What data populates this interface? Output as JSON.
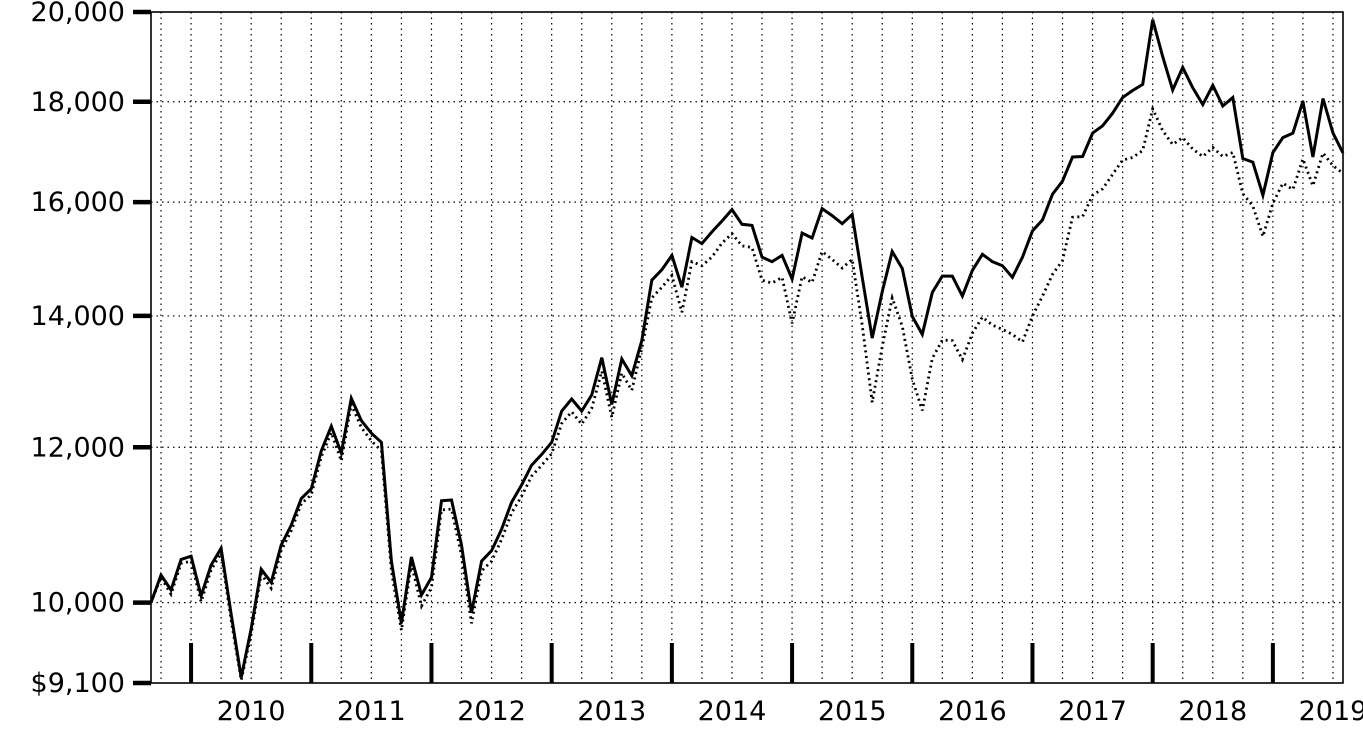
{
  "chart_data": {
    "type": "line",
    "title": "",
    "description": "Growth of investment, log-scaled line chart, solid and dotted black series",
    "background_color": "#ffffff",
    "line_color": "#000000",
    "grid_color": "#000000",
    "y_axis": {
      "scale": "log",
      "min": 9100,
      "max": 20000,
      "ticks": [
        {
          "value": 20000,
          "label": "20,000",
          "grid": false
        },
        {
          "value": 18000,
          "label": "18,000",
          "grid": true
        },
        {
          "value": 16000,
          "label": "16,000",
          "grid": true
        },
        {
          "value": 14000,
          "label": "14,000",
          "grid": true
        },
        {
          "value": 12000,
          "label": "12,000",
          "grid": true
        },
        {
          "value": 10000,
          "label": "10,000",
          "grid": true
        },
        {
          "value": 9100,
          "label": "$9,100",
          "grid": false
        }
      ]
    },
    "x_axis": {
      "unit": "monthly",
      "start": "2009-09",
      "end": "2019-08",
      "first_year_tick_month_index": 4,
      "months_per_year": 12,
      "minor_grid_every_months": 3,
      "year_labels": [
        "2010",
        "2011",
        "2012",
        "2013",
        "2014",
        "2015",
        "2016",
        "2017",
        "2018",
        "2019"
      ]
    },
    "legend": "none",
    "series": [
      {
        "name": "solid_line",
        "style": "solid",
        "color": "#000000",
        "values": [
          10000,
          10330,
          10150,
          10520,
          10560,
          10080,
          10450,
          10660,
          9870,
          9160,
          9700,
          10400,
          10240,
          10700,
          10950,
          11300,
          11430,
          11950,
          12300,
          11920,
          12710,
          12380,
          12200,
          12070,
          10500,
          9760,
          10550,
          10090,
          10300,
          11270,
          11280,
          10700,
          9880,
          10500,
          10630,
          10900,
          11250,
          11480,
          11750,
          11900,
          12070,
          12520,
          12700,
          12520,
          12760,
          13330,
          12620,
          13310,
          13050,
          13600,
          14600,
          14780,
          15030,
          14480,
          15350,
          15240,
          15450,
          15650,
          15860,
          15590,
          15570,
          15000,
          14920,
          15030,
          14620,
          15430,
          15340,
          15880,
          15750,
          15600,
          15770,
          14650,
          13640,
          14400,
          15100,
          14800,
          13990,
          13700,
          14390,
          14670,
          14670,
          14330,
          14770,
          15050,
          14920,
          14850,
          14650,
          15000,
          15470,
          15670,
          16150,
          16400,
          16870,
          16880,
          17350,
          17500,
          17760,
          18090,
          18240,
          18370,
          19820,
          18980,
          18250,
          18740,
          18300,
          17940,
          18350,
          17910,
          18090,
          16840,
          16770,
          16130,
          16960,
          17260,
          17350,
          18010,
          16870,
          18070,
          17350,
          16950
        ]
      },
      {
        "name": "dotted_line",
        "style": "dotted",
        "color": "#000000",
        "values": [
          10000,
          10300,
          10100,
          10470,
          10500,
          10010,
          10390,
          10600,
          9800,
          9130,
          9640,
          10340,
          10170,
          10630,
          10880,
          11230,
          11350,
          11870,
          12210,
          11810,
          12620,
          12280,
          12090,
          11950,
          10380,
          9680,
          10460,
          9960,
          10180,
          11150,
          11160,
          10570,
          9760,
          10380,
          10500,
          10770,
          11110,
          11330,
          11600,
          11750,
          11910,
          12340,
          12510,
          12330,
          12560,
          13120,
          12430,
          13090,
          12830,
          13480,
          14300,
          14480,
          14680,
          14060,
          14920,
          14850,
          15000,
          15250,
          15420,
          15200,
          15170,
          14600,
          14550,
          14650,
          13880,
          14660,
          14560,
          15100,
          14960,
          14810,
          14960,
          13850,
          12650,
          13500,
          14300,
          13830,
          13000,
          12530,
          13320,
          13610,
          13600,
          13300,
          13720,
          13980,
          13850,
          13780,
          13700,
          13580,
          14000,
          14330,
          14700,
          14940,
          15720,
          15730,
          16130,
          16250,
          16530,
          16810,
          16860,
          17000,
          17850,
          17400,
          17120,
          17260,
          17030,
          16880,
          17060,
          16880,
          16960,
          16160,
          15930,
          15370,
          15980,
          16360,
          16240,
          16830,
          16310,
          16950,
          16700,
          16550
        ]
      }
    ]
  }
}
